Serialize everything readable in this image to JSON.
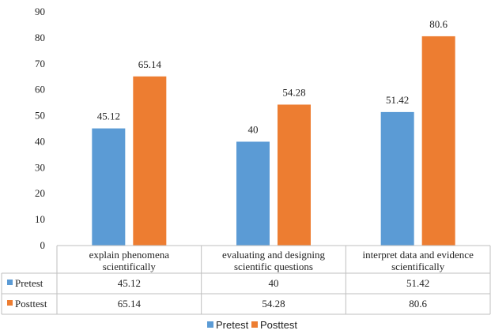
{
  "chart_data": {
    "type": "bar",
    "title": "",
    "xlabel": "",
    "ylabel": "",
    "ylim": [
      0,
      90
    ],
    "yticks": [
      0,
      10,
      20,
      30,
      40,
      50,
      60,
      70,
      80,
      90
    ],
    "categories": [
      [
        "explain phenomena",
        "scientifically"
      ],
      [
        "evaluating and designing",
        "scientific questions"
      ],
      [
        "interpret data and evidence",
        "scientifically"
      ]
    ],
    "series": [
      {
        "name": "Pretest",
        "color": "#5B9BD5",
        "values": [
          45.12,
          40,
          51.42
        ],
        "labels": [
          "45.12",
          "40",
          "51.42"
        ]
      },
      {
        "name": "Posttest",
        "color": "#ED7D31",
        "values": [
          65.14,
          54.28,
          80.6
        ],
        "labels": [
          "65.14",
          "54.28",
          "80.6"
        ]
      }
    ],
    "data_table": true,
    "legend": "bottom-center",
    "grid": false
  }
}
